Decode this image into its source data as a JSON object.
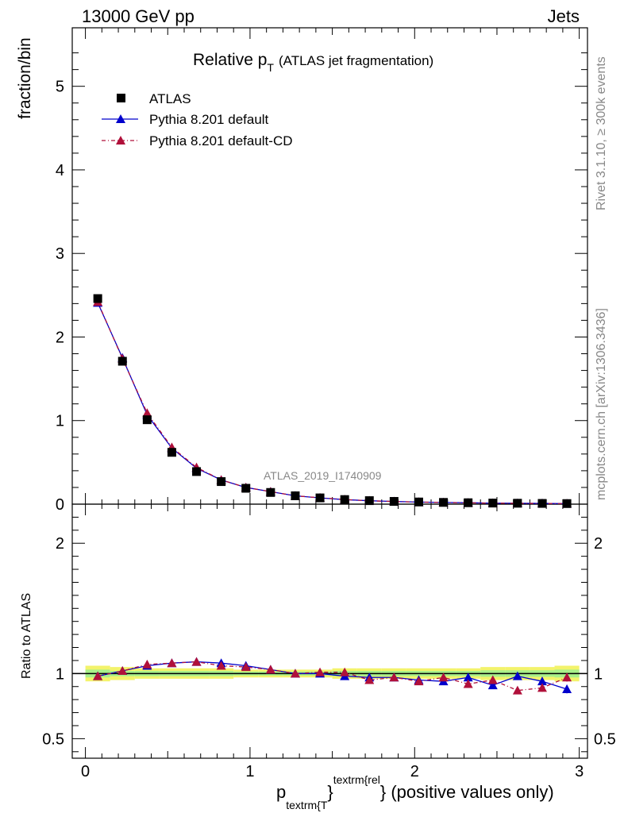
{
  "header": {
    "energy": "13000 GeV pp",
    "category": "Jets"
  },
  "side_labels": {
    "rivet": "Rivet 3.1.10, ≥ 300k events",
    "mcplots": "mcplots.cern.ch [arXiv:1306.3436]"
  },
  "chart_data": [
    {
      "type": "scatter",
      "title_main": "Relative p",
      "title_sub": "T",
      "title_rest": "(ATLAS jet fragmentation)",
      "ylabel": "fraction/bin",
      "watermark": "ATLAS_2019_I1740909",
      "xlim": [
        -0.08,
        3.05
      ],
      "ylim": [
        0,
        5.7
      ],
      "yticks": [
        0,
        1,
        2,
        3,
        4,
        5
      ],
      "x": [
        0.075,
        0.225,
        0.375,
        0.525,
        0.675,
        0.825,
        0.975,
        1.125,
        1.275,
        1.425,
        1.575,
        1.725,
        1.875,
        2.025,
        2.175,
        2.325,
        2.475,
        2.625,
        2.775,
        2.925
      ],
      "series": [
        {
          "name": "ATLAS",
          "color": "#000000",
          "style": "square",
          "values": [
            2.46,
            1.71,
            1.01,
            0.62,
            0.39,
            0.27,
            0.19,
            0.14,
            0.1,
            0.075,
            0.055,
            0.042,
            0.033,
            0.026,
            0.021,
            0.017,
            0.013,
            0.011,
            0.009,
            0.007
          ]
        },
        {
          "name": "Pythia 8.201 default",
          "color": "#0000cc",
          "style": "triangle-solid",
          "values": [
            2.41,
            1.75,
            1.07,
            0.67,
            0.43,
            0.29,
            0.2,
            0.15,
            0.1,
            0.075,
            0.054,
            0.041,
            0.032,
            0.025,
            0.02,
            0.017,
            0.012,
            0.011,
            0.009,
            0.006
          ]
        },
        {
          "name": "Pythia 8.201 default-CD",
          "color": "#b0103a",
          "style": "triangle-dashed",
          "values": [
            2.42,
            1.74,
            1.09,
            0.68,
            0.44,
            0.29,
            0.2,
            0.15,
            0.1,
            0.076,
            0.056,
            0.04,
            0.032,
            0.025,
            0.02,
            0.016,
            0.012,
            0.01,
            0.008,
            0.007
          ]
        }
      ]
    },
    {
      "type": "line",
      "ylabel": "Ratio to ATLAS",
      "xlabel_main": "p",
      "xlabel_sub": "textrm{T",
      "xlabel_sup": "textrm{rel",
      "xlabel_close": "}",
      "xlabel_rest": "} (positive values only)",
      "xlim": [
        -0.08,
        3.05
      ],
      "ylim": [
        0.35,
        2.3
      ],
      "xticks": [
        0,
        1,
        2,
        3
      ],
      "yticks": [
        0.5,
        1,
        2
      ],
      "x": [
        0.075,
        0.225,
        0.375,
        0.525,
        0.675,
        0.825,
        0.975,
        1.125,
        1.275,
        1.425,
        1.575,
        1.725,
        1.875,
        2.025,
        2.175,
        2.325,
        2.475,
        2.625,
        2.775,
        2.925
      ],
      "band_yellow": [
        0.06,
        0.05,
        0.04,
        0.04,
        0.04,
        0.04,
        0.03,
        0.03,
        0.03,
        0.03,
        0.04,
        0.04,
        0.04,
        0.04,
        0.04,
        0.04,
        0.05,
        0.05,
        0.05,
        0.06
      ],
      "band_green": [
        0.03,
        0.02,
        0.02,
        0.02,
        0.02,
        0.02,
        0.015,
        0.015,
        0.015,
        0.015,
        0.02,
        0.02,
        0.02,
        0.02,
        0.02,
        0.02,
        0.025,
        0.025,
        0.025,
        0.03
      ],
      "series": [
        {
          "name": "Pythia 8.201 default",
          "color": "#0000cc",
          "values": [
            0.98,
            1.02,
            1.06,
            1.08,
            1.09,
            1.08,
            1.06,
            1.03,
            1.0,
            1.0,
            0.98,
            0.97,
            0.97,
            0.95,
            0.94,
            0.97,
            0.91,
            0.98,
            0.94,
            0.88
          ],
          "errors": [
            0.005,
            0.005,
            0.006,
            0.007,
            0.008,
            0.009,
            0.01,
            0.01,
            0.012,
            0.014,
            0.016,
            0.018,
            0.02,
            0.02,
            0.022,
            0.024,
            0.026,
            0.028,
            0.03,
            0.032
          ]
        },
        {
          "name": "Pythia 8.201 default-CD",
          "color": "#b0103a",
          "values": [
            0.98,
            1.02,
            1.07,
            1.08,
            1.09,
            1.06,
            1.05,
            1.03,
            1.0,
            1.01,
            1.01,
            0.95,
            0.97,
            0.94,
            0.97,
            0.92,
            0.95,
            0.87,
            0.89,
            0.97
          ],
          "errors": [
            0.005,
            0.005,
            0.006,
            0.007,
            0.008,
            0.009,
            0.01,
            0.01,
            0.012,
            0.014,
            0.016,
            0.018,
            0.02,
            0.02,
            0.022,
            0.024,
            0.026,
            0.028,
            0.03,
            0.032
          ]
        }
      ]
    }
  ]
}
